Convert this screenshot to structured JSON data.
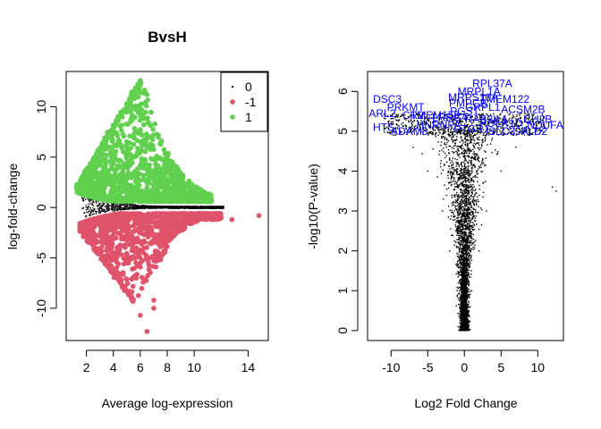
{
  "chart_data": [
    {
      "type": "scatter",
      "title": "BvsH",
      "xlabel": "Average log-expression",
      "ylabel": "log-fold-change",
      "xlim": [
        0.5,
        15.5
      ],
      "ylim": [
        -13.2,
        13.5
      ],
      "xticks": [
        2,
        4,
        6,
        8,
        10,
        14
      ],
      "yticks": [
        -10,
        -5,
        0,
        5,
        10
      ],
      "legend": {
        "placement": "top-right",
        "entries": [
          {
            "label": "0",
            "color": "#000000"
          },
          {
            "label": "-1",
            "color": "#DF536B"
          },
          {
            "label": "1",
            "color": "#61D04F"
          }
        ]
      },
      "series": [
        {
          "status": "0",
          "color": "#000000",
          "approx_points": [
            [
              1.6,
              1.5
            ],
            [
              2.0,
              0.8
            ],
            [
              3.0,
              0.5
            ],
            [
              5.0,
              0.2
            ],
            [
              8.0,
              0.0
            ],
            [
              10.0,
              -0.1
            ],
            [
              12.0,
              -0.1
            ],
            [
              2.0,
              -0.7
            ],
            [
              3.0,
              -0.6
            ],
            [
              6.0,
              -0.3
            ]
          ]
        },
        {
          "status": "1",
          "color": "#61D04F",
          "approx_points": [
            [
              1.2,
              2.0
            ],
            [
              3.0,
              5.0
            ],
            [
              4.0,
              7.0
            ],
            [
              5.0,
              9.0
            ],
            [
              6.0,
              12.6
            ],
            [
              6.5,
              11.0
            ],
            [
              7.0,
              8.0
            ],
            [
              8.0,
              5.0
            ],
            [
              10.0,
              2.5
            ],
            [
              11.5,
              1.2
            ]
          ]
        },
        {
          "status": "-1",
          "color": "#DF536B",
          "approx_points": [
            [
              1.5,
              -2.0
            ],
            [
              3.0,
              -4.5
            ],
            [
              4.5,
              -8.0
            ],
            [
              5.0,
              -9.5
            ],
            [
              6.0,
              -11.0
            ],
            [
              6.5,
              -12.3
            ],
            [
              7.0,
              -9.0
            ],
            [
              8.0,
              -5.0
            ],
            [
              10.0,
              -2.0
            ],
            [
              12.0,
              -1.2
            ],
            [
              14.8,
              -0.8
            ]
          ]
        }
      ]
    },
    {
      "type": "scatter",
      "title": "",
      "xlabel": "Log2 Fold Change",
      "ylabel": "-log10(P-value)",
      "xlim": [
        -13.2,
        13.5
      ],
      "ylim": [
        -0.25,
        6.5
      ],
      "xticks": [
        -10,
        -5,
        0,
        5,
        10
      ],
      "yticks": [
        0,
        1,
        2,
        3,
        4,
        5,
        6
      ],
      "label_color": "#0000FF",
      "point_color": "#000000",
      "approx_points": [
        [
          0,
          0.02
        ],
        [
          -1,
          1.0
        ],
        [
          1,
          1.0
        ],
        [
          -2,
          2.0
        ],
        [
          2,
          2.0
        ],
        [
          -3,
          3.0
        ],
        [
          3,
          3.0
        ],
        [
          -5,
          4.0
        ],
        [
          5,
          4.0
        ],
        [
          -7,
          4.6
        ],
        [
          7,
          4.6
        ],
        [
          12,
          3.6
        ],
        [
          12.5,
          3.5
        ]
      ],
      "gene_labels": [
        {
          "text": "RPL37A",
          "x": 3.8,
          "y": 6.2
        },
        {
          "text": "MRPL1A",
          "x": 2.0,
          "y": 6.0
        },
        {
          "text": "MRPS10A",
          "x": 1.2,
          "y": 5.85
        },
        {
          "text": "DSC3",
          "x": -10.5,
          "y": 5.8
        },
        {
          "text": "PMPCB",
          "x": 0.5,
          "y": 5.7
        },
        {
          "text": "GRPL1",
          "x": 2.5,
          "y": 5.6
        },
        {
          "text": "TMEM122",
          "x": 5.5,
          "y": 5.8
        },
        {
          "text": "ACSM2B",
          "x": 8.0,
          "y": 5.55
        },
        {
          "text": "ARL2",
          "x": -11.2,
          "y": 5.45
        },
        {
          "text": "PRKMT",
          "x": -8.0,
          "y": 5.6
        },
        {
          "text": "PGS1",
          "x": 0.0,
          "y": 5.5
        },
        {
          "text": "TMEM159",
          "x": -4.0,
          "y": 5.4
        },
        {
          "text": "CR2",
          "x": -7.0,
          "y": 5.4
        },
        {
          "text": "POLR1D",
          "x": 5.0,
          "y": 5.2
        },
        {
          "text": "CH2B",
          "x": 10.0,
          "y": 5.3
        },
        {
          "text": "NDUFA",
          "x": 11.0,
          "y": 5.15
        },
        {
          "text": "LRRC4",
          "x": -2.0,
          "y": 5.35
        },
        {
          "text": "RAB3IL1",
          "x": 3.0,
          "y": 5.3
        },
        {
          "text": "HTS",
          "x": -11.0,
          "y": 5.1
        },
        {
          "text": "ADAM8",
          "x": -7.5,
          "y": 5.0
        },
        {
          "text": "PLD2",
          "x": 9.5,
          "y": 5.0
        },
        {
          "text": "SLC39A",
          "x": 6.0,
          "y": 5.0
        },
        {
          "text": "HNRNPA",
          "x": -3.5,
          "y": 5.15
        },
        {
          "text": "PTGR1",
          "x": 1.0,
          "y": 5.05
        }
      ]
    }
  ]
}
